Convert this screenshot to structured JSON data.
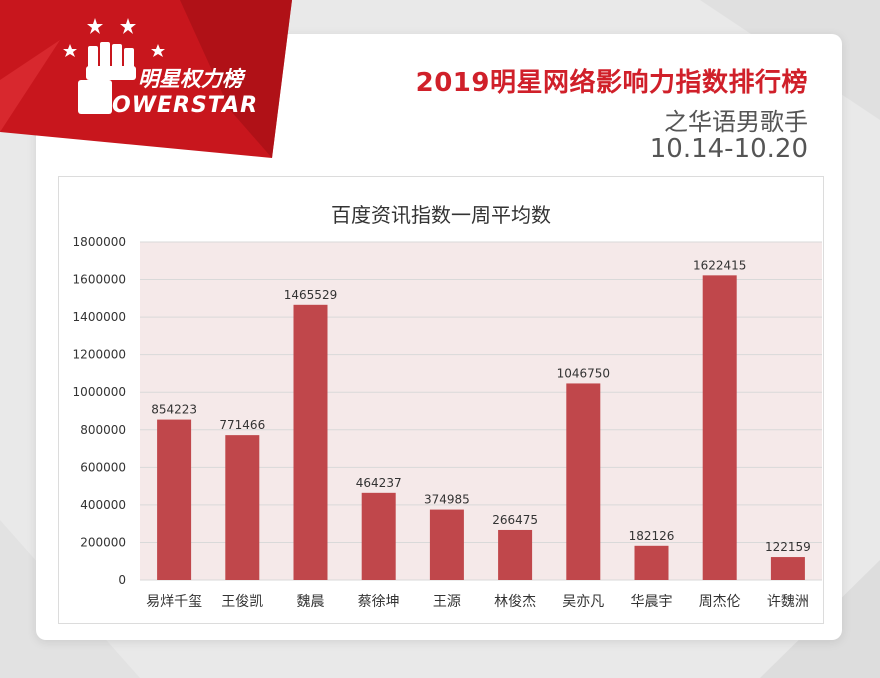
{
  "brand": {
    "name_cn": "明星权力榜",
    "name_en": "OWERSTAR"
  },
  "header": {
    "title": "2019明星网络影响力指数排行榜",
    "subtitle": "之华语男歌手",
    "date_range": "10.14-10.20"
  },
  "colors": {
    "accent_red": "#d0202a",
    "bar": "#c0474b",
    "plot_bg": "#f5e9e9"
  },
  "chart_data": {
    "type": "bar",
    "title": "百度资讯指数一周平均数",
    "categories": [
      "易烊千玺",
      "王俊凯",
      "魏晨",
      "蔡徐坤",
      "王源",
      "林俊杰",
      "吴亦凡",
      "华晨宇",
      "周杰伦",
      "许魏洲"
    ],
    "values": [
      854223,
      771466,
      1465529,
      464237,
      374985,
      266475,
      1046750,
      182126,
      1622415,
      122159
    ],
    "ylim": [
      0,
      1800000
    ],
    "yticks": [
      0,
      200000,
      400000,
      600000,
      800000,
      1000000,
      1200000,
      1400000,
      1600000,
      1800000
    ],
    "grid": true,
    "data_labels": true
  }
}
